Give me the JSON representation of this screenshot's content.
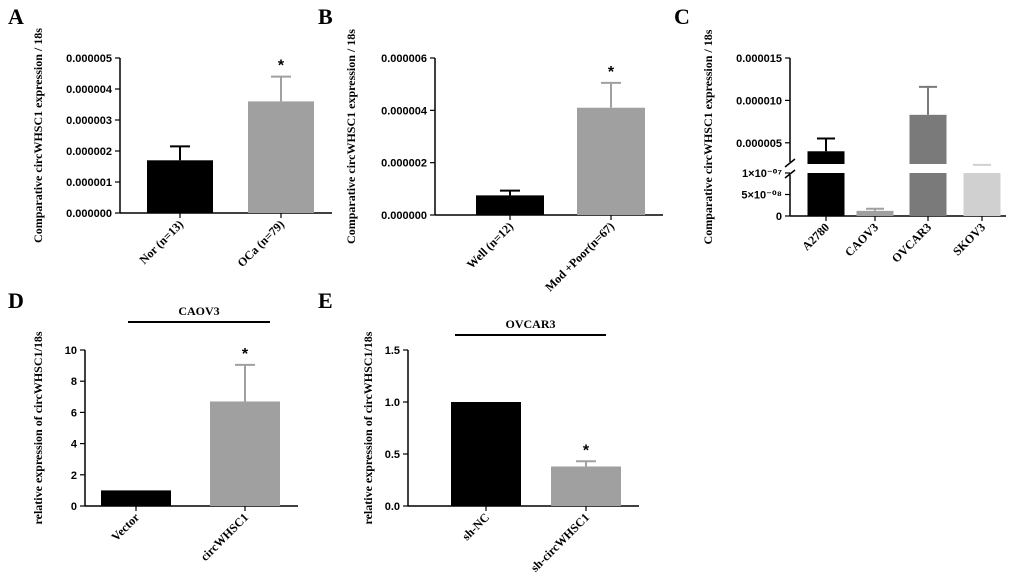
{
  "chart_data": [
    {
      "panel": "A",
      "type": "bar",
      "ylabel": "Comparative circWHSC1 expression / 18s",
      "ylim": [
        0,
        5e-06
      ],
      "yticks": [
        "0.000000",
        "0.000001",
        "0.000002",
        "0.000003",
        "0.000004",
        "0.000005"
      ],
      "ytick_values": [
        0,
        1e-06,
        2e-06,
        3e-06,
        4e-06,
        5e-06
      ],
      "categories": [
        "Nor (n=13)",
        "OCa (n=79)"
      ],
      "values": [
        1.7e-06,
        3.6e-06
      ],
      "errors": [
        4.5e-07,
        8e-07
      ],
      "colors": [
        "#000000",
        "#a0a0a0"
      ],
      "significance": [
        "",
        "*"
      ]
    },
    {
      "panel": "B",
      "type": "bar",
      "ylabel": "Comparative circWHSC1 expression / 18s",
      "ylim": [
        0,
        6e-06
      ],
      "yticks": [
        "0.000000",
        "0.000002",
        "0.000004",
        "0.000006"
      ],
      "ytick_values": [
        0,
        2e-06,
        4e-06,
        6e-06
      ],
      "categories": [
        "Well (n=12)",
        "Mod +Poor(n=67)"
      ],
      "values": [
        7.5e-07,
        4.1e-06
      ],
      "errors": [
        1.8e-07,
        9.5e-07
      ],
      "colors": [
        "#000000",
        "#a0a0a0"
      ],
      "significance": [
        "",
        "*"
      ]
    },
    {
      "panel": "C",
      "type": "bar",
      "ylabel": "Comparative circWHSC1 expression / 18s",
      "broken_axis": true,
      "ylim_lower": [
        0,
        1e-07
      ],
      "ylim_upper": [
        2.5e-06,
        1.5e-05
      ],
      "yticks_lower": [
        "5×10⁻⁰⁸",
        "1×10⁻⁰⁷"
      ],
      "ytick_values_lower": [
        5e-08,
        1e-07
      ],
      "yticks_upper": [
        "0.000005",
        "0.000010",
        "0.000015"
      ],
      "ytick_values_upper": [
        5e-06,
        1e-05,
        1.5e-05
      ],
      "tick_zero": "0",
      "categories": [
        "A2780",
        "CAOV3",
        "OVCAR3",
        "SKOV3"
      ],
      "values": [
        4e-06,
        1.2e-08,
        8.3e-06,
        2.3e-06
      ],
      "errors": [
        1.5e-06,
        5e-09,
        3.3e-06,
        1e-07
      ],
      "colors": [
        "#000000",
        "#a0a0a0",
        "#7a7a7a",
        "#d0d0d0"
      ],
      "significance": [
        "",
        "",
        "",
        ""
      ]
    },
    {
      "panel": "D",
      "type": "bar",
      "header": "CAOV3",
      "ylabel": "relative expression of circWHSC1/18s",
      "ylim": [
        0,
        10
      ],
      "yticks": [
        "0",
        "2",
        "4",
        "6",
        "8",
        "10"
      ],
      "ytick_values": [
        0,
        2,
        4,
        6,
        8,
        10
      ],
      "categories": [
        "Vector",
        "circWHSC1"
      ],
      "values": [
        1.0,
        6.7
      ],
      "errors": [
        0,
        2.35
      ],
      "colors": [
        "#000000",
        "#a0a0a0"
      ],
      "significance": [
        "",
        "*"
      ]
    },
    {
      "panel": "E",
      "type": "bar",
      "header": "OVCAR3",
      "ylabel": "relative expression of circWHSC1/18s",
      "ylim": [
        0,
        1.5
      ],
      "yticks": [
        "0.0",
        "0.5",
        "1.0",
        "1.5"
      ],
      "ytick_values": [
        0,
        0.5,
        1.0,
        1.5
      ],
      "categories": [
        "sh-NC",
        "sh-circWHSC1"
      ],
      "values": [
        1.0,
        0.38
      ],
      "errors": [
        0,
        0.05
      ],
      "colors": [
        "#000000",
        "#a0a0a0"
      ],
      "significance": [
        "",
        "*"
      ]
    }
  ]
}
